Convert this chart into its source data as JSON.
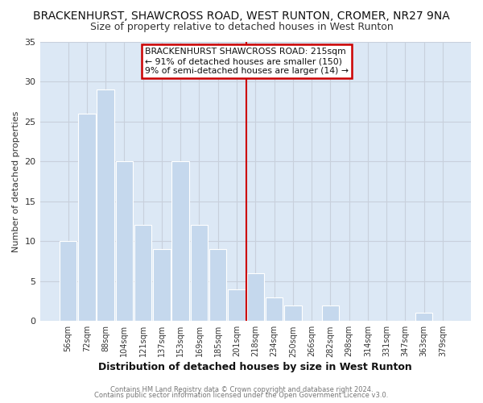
{
  "title": "BRACKENHURST, SHAWCROSS ROAD, WEST RUNTON, CROMER, NR27 9NA",
  "subtitle": "Size of property relative to detached houses in West Runton",
  "xlabel": "Distribution of detached houses by size in West Runton",
  "ylabel": "Number of detached properties",
  "bar_labels": [
    "56sqm",
    "72sqm",
    "88sqm",
    "104sqm",
    "121sqm",
    "137sqm",
    "153sqm",
    "169sqm",
    "185sqm",
    "201sqm",
    "218sqm",
    "234sqm",
    "250sqm",
    "266sqm",
    "282sqm",
    "298sqm",
    "314sqm",
    "331sqm",
    "347sqm",
    "363sqm",
    "379sqm"
  ],
  "bar_values": [
    10,
    26,
    29,
    20,
    12,
    9,
    20,
    12,
    9,
    4,
    6,
    3,
    2,
    0,
    2,
    0,
    0,
    0,
    0,
    1,
    0
  ],
  "bar_color": "#c5d8ed",
  "bar_edge_color": "#ffffff",
  "grid_color": "#c8d0dc",
  "vline_x_idx": 10,
  "vline_color": "#cc0000",
  "ylim": [
    0,
    35
  ],
  "yticks": [
    0,
    5,
    10,
    15,
    20,
    25,
    30,
    35
  ],
  "annotation_title": "BRACKENHURST SHAWCROSS ROAD: 215sqm",
  "annotation_line1": "← 91% of detached houses are smaller (150)",
  "annotation_line2": "9% of semi-detached houses are larger (14) →",
  "annotation_box_color": "#ffffff",
  "annotation_box_edge": "#cc0000",
  "footer1": "Contains HM Land Registry data © Crown copyright and database right 2024.",
  "footer2": "Contains public sector information licensed under the Open Government Licence v3.0.",
  "fig_bg_color": "#ffffff",
  "plot_bg_color": "#dce8f5",
  "title_fontsize": 10,
  "subtitle_fontsize": 9
}
